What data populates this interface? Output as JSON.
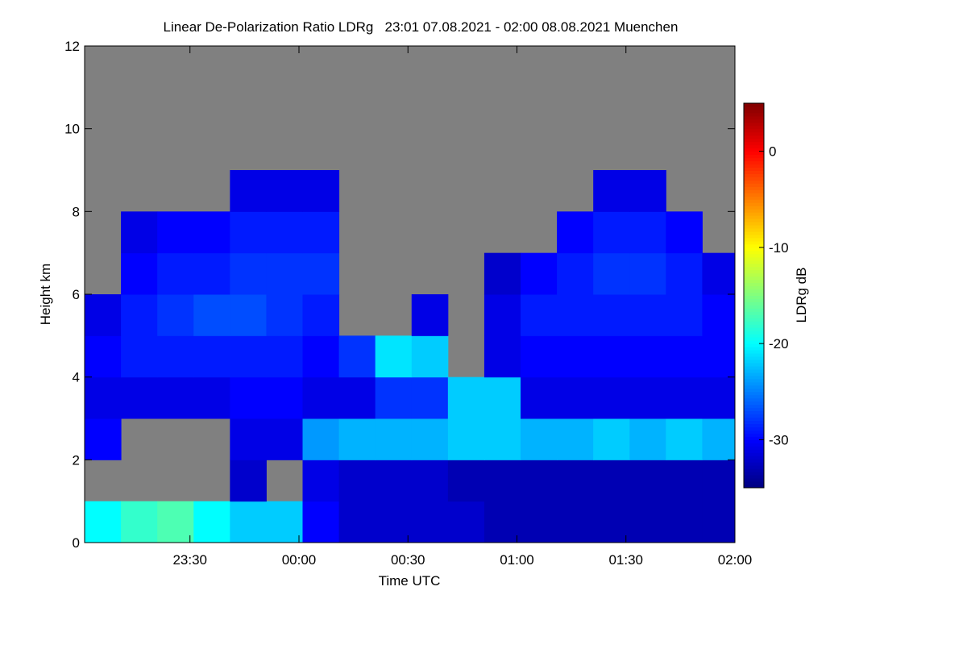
{
  "chart_data": {
    "type": "heatmap",
    "title": "Linear De-Polarization Ratio LDRg   23:01 07.08.2021 - 02:00 08.08.2021 Muenchen",
    "xlabel": "Time UTC",
    "ylabel": "Height km",
    "colorbar_label": "LDRg dB",
    "colormap": "jet",
    "background_color": "#808080",
    "xlim": [
      "2021-08-07T23:01",
      "2021-08-08T02:00"
    ],
    "xticks": [
      {
        "value": "2021-08-07T23:30",
        "label": "23:30"
      },
      {
        "value": "2021-08-08T00:00",
        "label": "00:00"
      },
      {
        "value": "2021-08-08T00:30",
        "label": "00:30"
      },
      {
        "value": "2021-08-08T01:00",
        "label": "01:00"
      },
      {
        "value": "2021-08-08T01:30",
        "label": "01:30"
      },
      {
        "value": "2021-08-08T02:00",
        "label": "02:00"
      }
    ],
    "ylim": [
      0,
      12
    ],
    "yticks": [
      0,
      2,
      4,
      6,
      8,
      10,
      12
    ],
    "clim": [
      -35,
      5
    ],
    "cticks": [
      0,
      -10,
      -20,
      -30
    ],
    "x": [
      "2021-08-07T23:01",
      "2021-08-07T23:11",
      "2021-08-07T23:21",
      "2021-08-07T23:31",
      "2021-08-07T23:41",
      "2021-08-07T23:51",
      "2021-08-08T00:01",
      "2021-08-08T00:11",
      "2021-08-08T00:21",
      "2021-08-08T00:31",
      "2021-08-08T00:41",
      "2021-08-08T00:51",
      "2021-08-08T01:01",
      "2021-08-08T01:11",
      "2021-08-08T01:21",
      "2021-08-08T01:31",
      "2021-08-08T01:41",
      "2021-08-08T01:51"
    ],
    "y": [
      0,
      1,
      2,
      3,
      4,
      5,
      6,
      7,
      8,
      9,
      10,
      11
    ],
    "z": [
      [
        -20,
        -18,
        -17,
        -20,
        -22,
        -22,
        -30,
        -32,
        -32,
        -32,
        -32,
        -33,
        -33,
        -33,
        -33,
        -33,
        -33,
        -33
      ],
      [
        null,
        null,
        null,
        null,
        -32,
        null,
        -31,
        -32,
        -32,
        -32,
        -33,
        -33,
        -33,
        -33,
        -33,
        -33,
        -33,
        -33
      ],
      [
        -30,
        null,
        null,
        null,
        -31,
        -31,
        -24,
        -23,
        -23,
        -23,
        -22,
        -22,
        -23,
        -23,
        -22,
        -23,
        -22,
        -23
      ],
      [
        -31,
        -31,
        -31,
        -31,
        -30,
        -30,
        -31,
        -31,
        -28,
        -28,
        -22,
        -22,
        -31,
        -31,
        -31,
        -31,
        -31,
        -31
      ],
      [
        -30,
        -29,
        -29,
        -29,
        -29,
        -29,
        -30,
        -28,
        -21,
        -22,
        null,
        -31,
        -30,
        -30,
        -30,
        -30,
        -30,
        -30
      ],
      [
        -31,
        -29,
        -28,
        -27,
        -27,
        -28,
        -29,
        null,
        null,
        -31,
        null,
        -31,
        -29,
        -29,
        -29,
        -29,
        -29,
        -30
      ],
      [
        null,
        -30,
        -29,
        -29,
        -28,
        -28,
        -28,
        null,
        null,
        null,
        null,
        -32,
        -30,
        -29,
        -28,
        -28,
        -29,
        -31
      ],
      [
        null,
        -31,
        -30,
        -30,
        -29,
        -29,
        -29,
        null,
        null,
        null,
        null,
        null,
        null,
        -30,
        -29,
        -29,
        -30,
        null
      ],
      [
        null,
        null,
        null,
        null,
        -31,
        -31,
        -31,
        null,
        null,
        null,
        null,
        null,
        null,
        null,
        -31,
        -31,
        null,
        null
      ],
      [
        null,
        null,
        null,
        null,
        null,
        null,
        null,
        null,
        null,
        null,
        null,
        null,
        null,
        null,
        null,
        null,
        null,
        null
      ],
      [
        null,
        null,
        null,
        null,
        null,
        null,
        null,
        null,
        null,
        null,
        null,
        null,
        null,
        null,
        null,
        null,
        null,
        null
      ],
      [
        null,
        null,
        null,
        null,
        null,
        null,
        null,
        null,
        null,
        null,
        null,
        null,
        null,
        null,
        null,
        null,
        null,
        null
      ]
    ]
  }
}
